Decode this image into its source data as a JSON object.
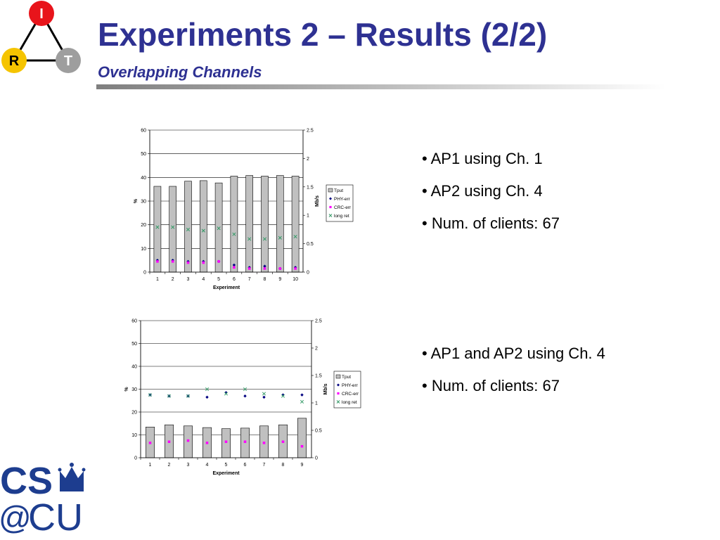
{
  "header": {
    "title": "Experiments 2 – Results (2/2)",
    "subtitle": "Overlapping Channels"
  },
  "logo": {
    "top": "I",
    "left": "R",
    "right": "T",
    "colors": {
      "top": "#E8141B",
      "left": "#F5C400",
      "right": "#9E9E9E"
    }
  },
  "footer_logo": {
    "line1": "CS",
    "line2_at": "@",
    "line2": "CU",
    "color": "#1D3D8F"
  },
  "bullets_1": [
    "• AP1 using Ch. 1",
    "• AP2 using Ch. 4",
    "• Num. of clients: 67"
  ],
  "bullets_2": [
    "• AP1 and AP2 using Ch. 4",
    "• Num. of clients: 67"
  ],
  "chart_data": [
    {
      "type": "bar",
      "xlabel": "Experiment",
      "ylabel": "%",
      "y2label": "Mb/s",
      "categories": [
        "1",
        "2",
        "3",
        "4",
        "5",
        "6",
        "7",
        "8",
        "9",
        "10"
      ],
      "ylim": [
        0,
        60
      ],
      "yticks": [
        0,
        10,
        20,
        30,
        40,
        50,
        60
      ],
      "y2lim": [
        0,
        2.5
      ],
      "y2ticks": [
        "0",
        "0.5",
        "1",
        "1.5",
        "2",
        "2.5"
      ],
      "grid": true,
      "legend": "right",
      "series": [
        {
          "name": "Tput",
          "kind": "bar",
          "axis": "right",
          "color": "#C0C0C0",
          "values": [
            1.51,
            1.51,
            1.6,
            1.61,
            1.57,
            1.69,
            1.7,
            1.69,
            1.7,
            1.69
          ]
        },
        {
          "name": "PHY-err",
          "kind": "marker",
          "marker": "diamond",
          "axis": "left",
          "color": "#000080",
          "values": [
            5,
            5,
            4.5,
            4.5,
            4.5,
            3,
            2,
            2.5,
            1.5,
            2
          ]
        },
        {
          "name": "CRC-err",
          "kind": "marker",
          "marker": "square",
          "axis": "left",
          "color": "#FF00FF",
          "values": [
            4.5,
            4.5,
            4,
            4,
            4.5,
            2,
            1.5,
            1.5,
            1.5,
            1.5
          ]
        },
        {
          "name": "long ret",
          "kind": "marker",
          "marker": "x",
          "axis": "left",
          "color": "#339966",
          "values": [
            19,
            19,
            18,
            17.5,
            18.5,
            16,
            14,
            14,
            14.5,
            15
          ]
        }
      ]
    },
    {
      "type": "bar",
      "xlabel": "Experiment",
      "ylabel": "%",
      "y2label": "Mb/s",
      "categories": [
        "1",
        "2",
        "3",
        "4",
        "5",
        "6",
        "7",
        "8",
        "9"
      ],
      "ylim": [
        0,
        60
      ],
      "yticks": [
        0,
        10,
        20,
        30,
        40,
        50,
        60
      ],
      "y2lim": [
        0,
        2.5
      ],
      "y2ticks": [
        "0",
        "0.5",
        "1",
        "1.5",
        "2",
        "2.5"
      ],
      "grid": true,
      "legend": "right",
      "series": [
        {
          "name": "Tput",
          "kind": "bar",
          "axis": "right",
          "color": "#C0C0C0",
          "values": [
            0.56,
            0.6,
            0.58,
            0.55,
            0.53,
            0.54,
            0.58,
            0.6,
            0.72
          ]
        },
        {
          "name": "PHY-err",
          "kind": "marker",
          "marker": "diamond",
          "axis": "left",
          "color": "#000080",
          "values": [
            27.5,
            27,
            27,
            26.5,
            28.5,
            27,
            26.5,
            27.5,
            27.5
          ]
        },
        {
          "name": "CRC-err",
          "kind": "marker",
          "marker": "square",
          "axis": "left",
          "color": "#FF00FF",
          "values": [
            6.5,
            7,
            7.5,
            6.5,
            7,
            7,
            6.5,
            7,
            5
          ]
        },
        {
          "name": "long ret",
          "kind": "marker",
          "marker": "x",
          "axis": "left",
          "color": "#339966",
          "values": [
            27.5,
            27,
            27,
            30,
            28,
            30,
            28,
            27,
            24.5
          ]
        }
      ]
    }
  ]
}
